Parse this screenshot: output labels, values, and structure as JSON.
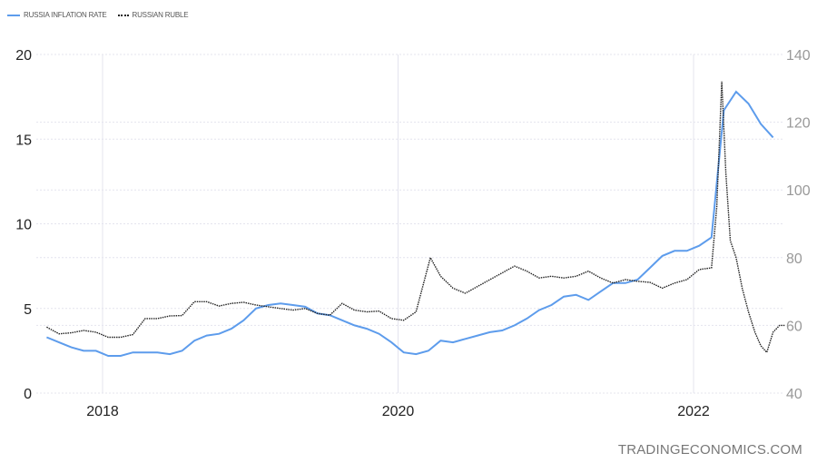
{
  "chart_data": {
    "type": "line",
    "legend": {
      "placement": "top-left"
    },
    "grid": true,
    "x_ticks": [
      "2018",
      "2020",
      "2022"
    ],
    "y_left": {
      "range": [
        0,
        20
      ],
      "ticks": [
        "0",
        "5",
        "10",
        "15",
        "20"
      ]
    },
    "y_right": {
      "range": [
        40,
        140
      ],
      "ticks": [
        "40",
        "60",
        "80",
        "100",
        "120",
        "140"
      ]
    },
    "series": [
      {
        "name": "RUSSIA INFLATION RATE",
        "axis": "left",
        "color": "#5d9cec",
        "style": "solid",
        "x": [
          "2017-08",
          "2017-09",
          "2017-10",
          "2017-11",
          "2017-12",
          "2018-01",
          "2018-02",
          "2018-03",
          "2018-04",
          "2018-05",
          "2018-06",
          "2018-07",
          "2018-08",
          "2018-09",
          "2018-10",
          "2018-11",
          "2018-12",
          "2019-01",
          "2019-02",
          "2019-03",
          "2019-04",
          "2019-05",
          "2019-06",
          "2019-07",
          "2019-08",
          "2019-09",
          "2019-10",
          "2019-11",
          "2019-12",
          "2020-01",
          "2020-02",
          "2020-03",
          "2020-04",
          "2020-05",
          "2020-06",
          "2020-07",
          "2020-08",
          "2020-09",
          "2020-10",
          "2020-11",
          "2020-12",
          "2021-01",
          "2021-02",
          "2021-03",
          "2021-04",
          "2021-05",
          "2021-06",
          "2021-07",
          "2021-08",
          "2021-09",
          "2021-10",
          "2021-11",
          "2021-12",
          "2022-01",
          "2022-02",
          "2022-03",
          "2022-04",
          "2022-05",
          "2022-06",
          "2022-07"
        ],
        "values": [
          3.3,
          3.0,
          2.7,
          2.5,
          2.5,
          2.2,
          2.2,
          2.4,
          2.4,
          2.4,
          2.3,
          2.5,
          3.1,
          3.4,
          3.5,
          3.8,
          4.3,
          5.0,
          5.2,
          5.3,
          5.2,
          5.1,
          4.7,
          4.6,
          4.3,
          4.0,
          3.8,
          3.5,
          3.0,
          2.4,
          2.3,
          2.5,
          3.1,
          3.0,
          3.2,
          3.4,
          3.6,
          3.7,
          4.0,
          4.4,
          4.9,
          5.2,
          5.7,
          5.8,
          5.5,
          6.0,
          6.5,
          6.5,
          6.7,
          7.4,
          8.1,
          8.4,
          8.4,
          8.7,
          9.2,
          16.7,
          17.8,
          17.1,
          15.9,
          15.1
        ]
      },
      {
        "name": "RUSSIAN RUBLE",
        "axis": "right",
        "color": "#222222",
        "style": "dotted",
        "x": [
          "2017-08-15",
          "2017-09-15",
          "2017-10-15",
          "2017-11-15",
          "2017-12-15",
          "2018-01-15",
          "2018-02-15",
          "2018-03-15",
          "2018-04-15",
          "2018-05-15",
          "2018-06-15",
          "2018-07-15",
          "2018-08-15",
          "2018-09-15",
          "2018-10-15",
          "2018-11-15",
          "2018-12-15",
          "2019-01-15",
          "2019-02-15",
          "2019-03-15",
          "2019-04-15",
          "2019-05-15",
          "2019-06-15",
          "2019-07-15",
          "2019-08-15",
          "2019-09-15",
          "2019-10-15",
          "2019-11-15",
          "2019-12-15",
          "2020-01-15",
          "2020-02-15",
          "2020-03-20",
          "2020-04-15",
          "2020-05-15",
          "2020-06-15",
          "2020-07-15",
          "2020-08-15",
          "2020-09-15",
          "2020-10-15",
          "2020-11-15",
          "2020-12-15",
          "2021-01-15",
          "2021-02-15",
          "2021-03-15",
          "2021-04-15",
          "2021-05-15",
          "2021-06-15",
          "2021-07-15",
          "2021-08-15",
          "2021-09-15",
          "2021-10-15",
          "2021-11-15",
          "2021-12-15",
          "2022-01-15",
          "2022-02-15",
          "2022-02-28",
          "2022-03-10",
          "2022-03-20",
          "2022-03-31",
          "2022-04-15",
          "2022-04-30",
          "2022-05-15",
          "2022-05-31",
          "2022-06-15",
          "2022-06-30",
          "2022-07-15",
          "2022-07-31",
          "2022-08-15"
        ],
        "values": [
          59.5,
          57.5,
          57.8,
          58.5,
          58.0,
          56.5,
          56.5,
          57.3,
          62.0,
          62.0,
          62.8,
          62.9,
          67.0,
          67.0,
          65.7,
          66.5,
          66.8,
          66.0,
          65.5,
          65.0,
          64.5,
          65.0,
          63.5,
          63.0,
          66.5,
          64.5,
          64.0,
          64.2,
          62.0,
          61.5,
          64.0,
          80.0,
          74.5,
          71.0,
          69.5,
          71.5,
          73.5,
          75.5,
          77.5,
          76.0,
          74.0,
          74.5,
          74.0,
          74.5,
          76.0,
          74.0,
          72.5,
          73.5,
          73.0,
          72.7,
          71.0,
          72.5,
          73.5,
          76.5,
          77.0,
          95.0,
          132.0,
          105.0,
          85.0,
          80.0,
          71.0,
          64.0,
          58.0,
          54.0,
          52.0,
          58.0,
          60.0,
          60.0
        ]
      }
    ]
  },
  "watermark": "TRADINGECONOMICS.COM"
}
